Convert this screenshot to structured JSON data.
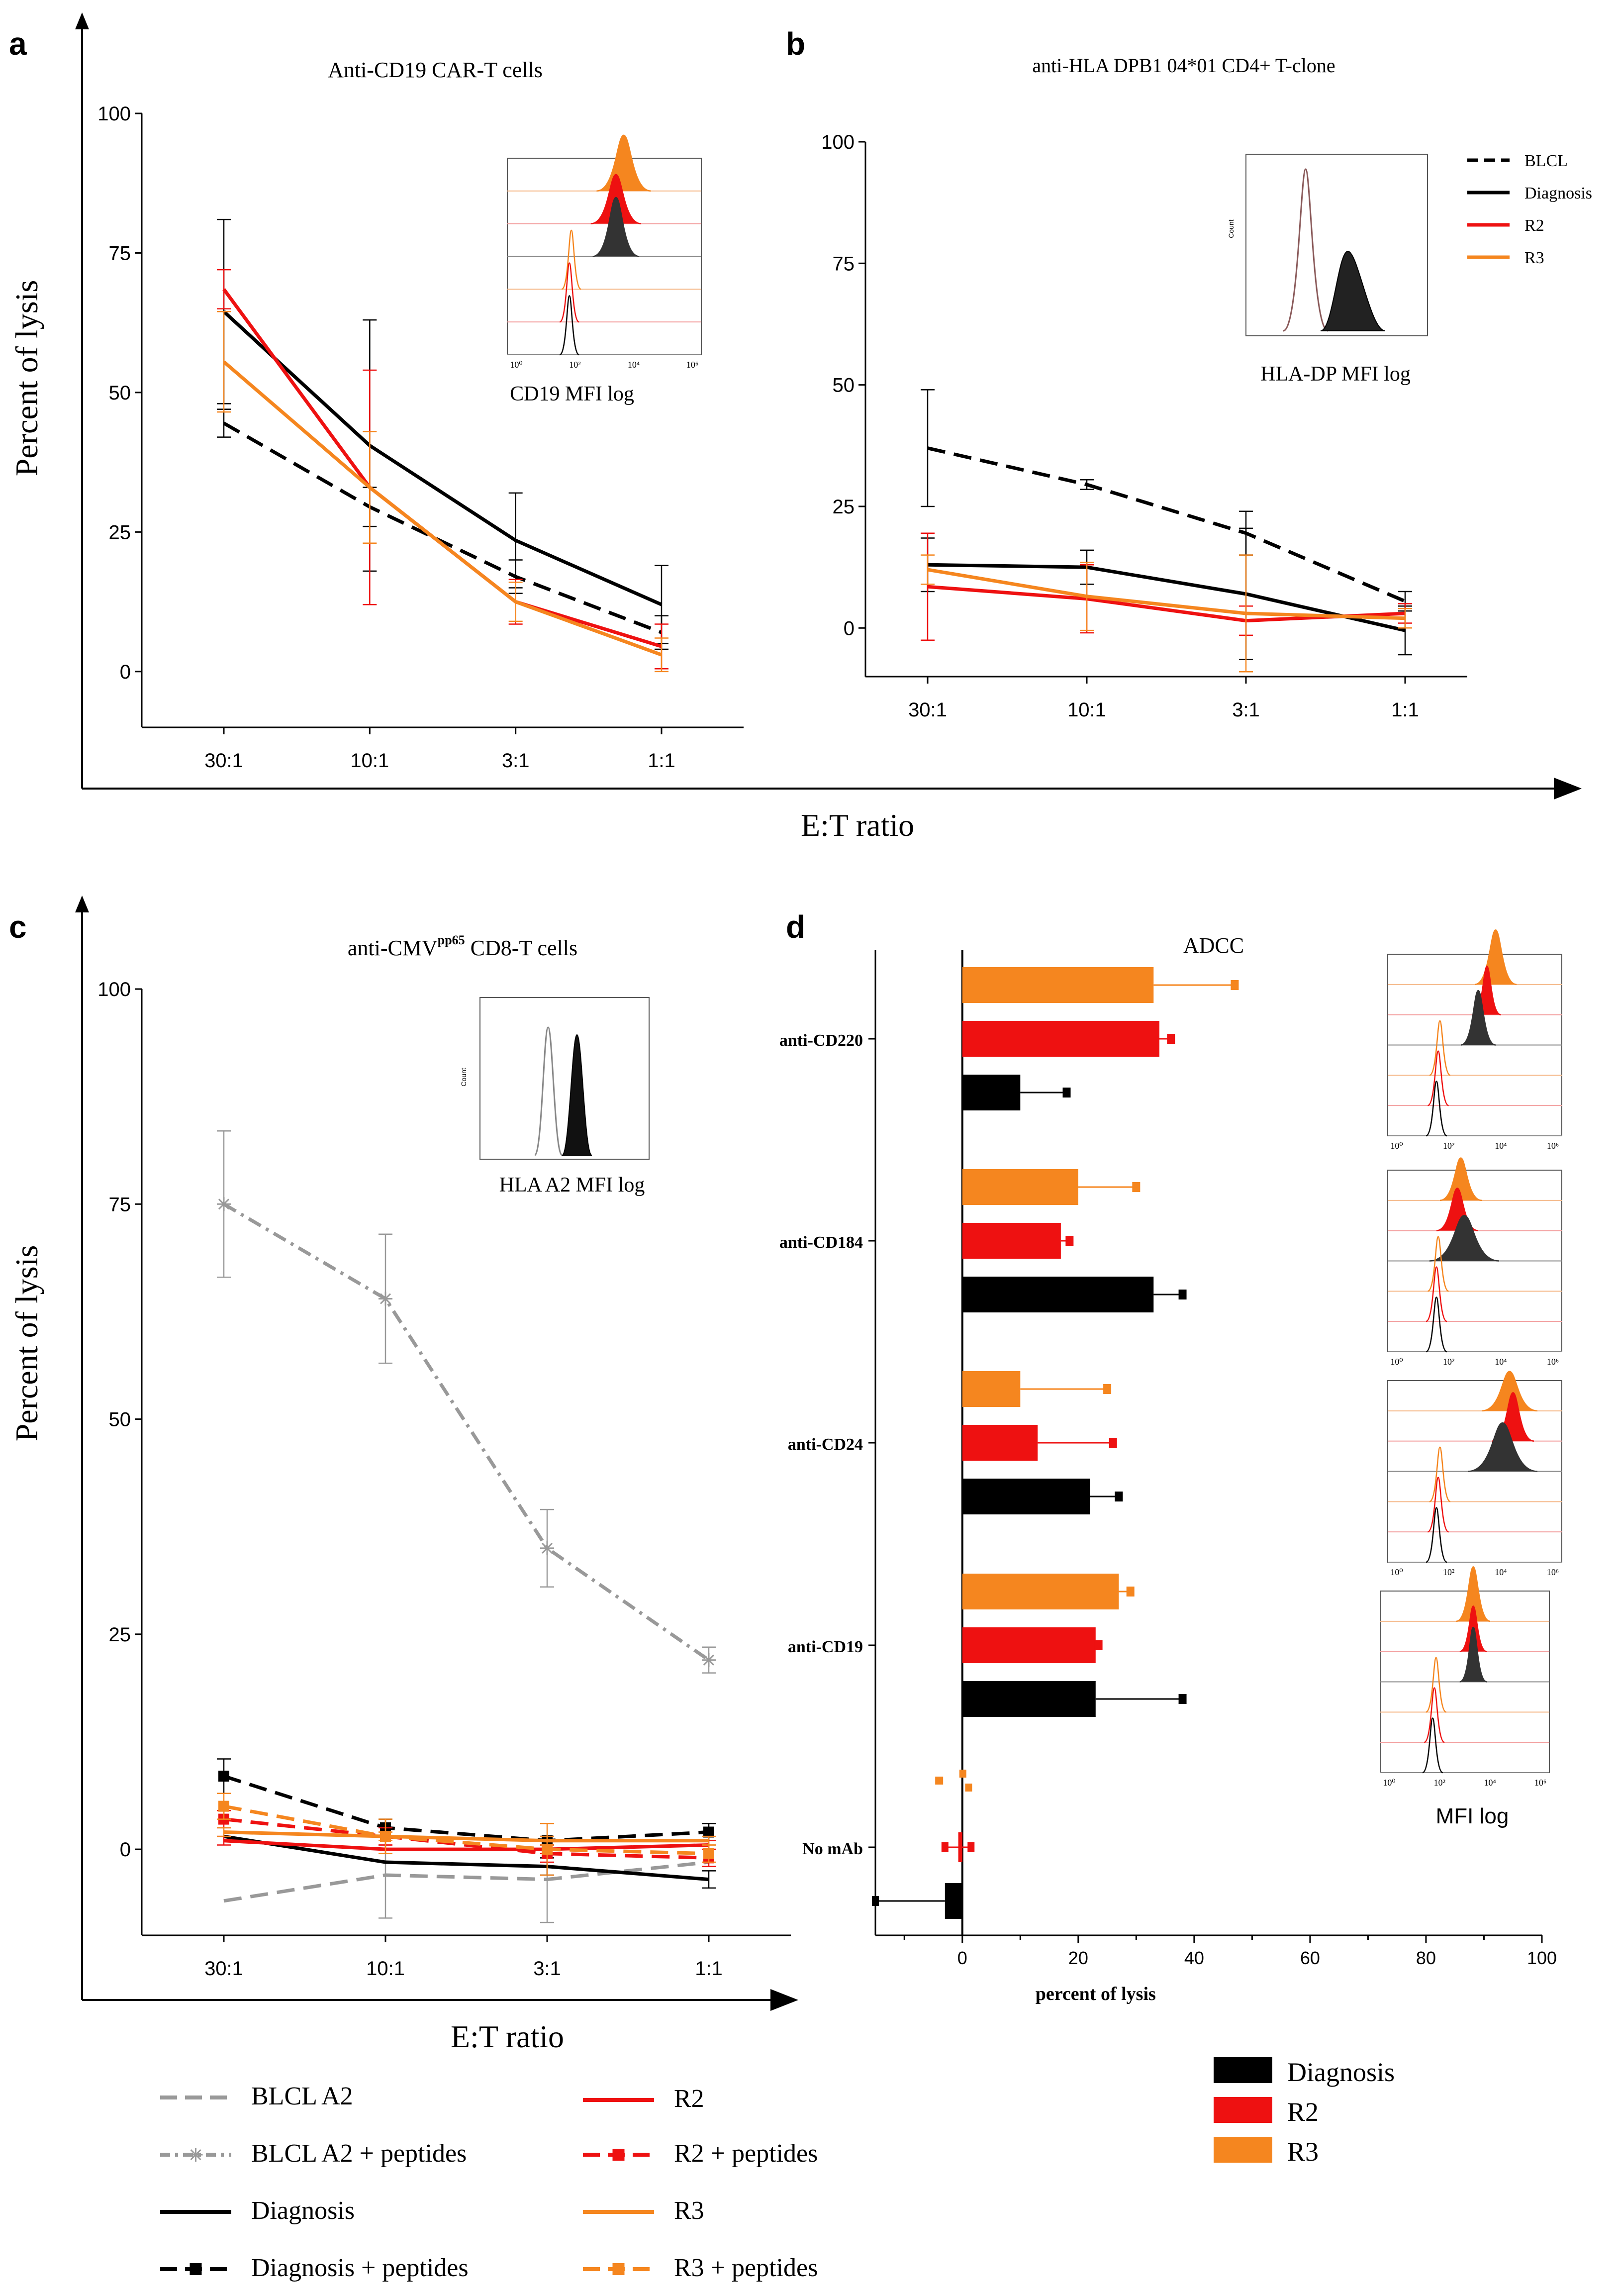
{
  "colors": {
    "black": "#000000",
    "red": "#ee1111",
    "orange": "#f5861f",
    "gray": "#999999",
    "dark_fill": "#333333"
  },
  "shared": {
    "et_axis_label": "E:T ratio",
    "y_axis_label": "Percent of lysis"
  },
  "chart_data": [
    {
      "id": "a",
      "panel_letter": "a",
      "type": "line",
      "title": "Anti-CD19 CAR-T cells",
      "xlabel": "",
      "ylabel": "Percent of lysis",
      "categories": [
        "30:1",
        "10:1",
        "3:1",
        "1:1"
      ],
      "ylim": [
        -10,
        100
      ],
      "yticks": [
        0,
        25,
        50,
        75,
        100
      ],
      "inset_label": "CD19 MFI log",
      "inset_ticks": [
        "10⁰",
        "10²",
        "10⁴",
        "10⁶"
      ],
      "series": [
        {
          "name": "BLCL",
          "color": "black",
          "dash": "dash",
          "values": [
            44.5,
            29.5,
            17,
            7
          ],
          "err": [
            2.5,
            3.5,
            3,
            3
          ]
        },
        {
          "name": "Diagnosis",
          "color": "black",
          "dash": "solid",
          "values": [
            64.5,
            40.5,
            23.5,
            12
          ],
          "err": [
            16.5,
            22.5,
            8.5,
            7
          ]
        },
        {
          "name": "R2",
          "color": "red",
          "dash": "solid",
          "values": [
            68.5,
            33,
            12.5,
            4.5
          ],
          "err": [
            3.5,
            21,
            4,
            4
          ]
        },
        {
          "name": "R3",
          "color": "orange",
          "dash": "solid",
          "values": [
            55.5,
            33,
            12.5,
            3
          ],
          "err": [
            9,
            10,
            3.5,
            3
          ]
        }
      ]
    },
    {
      "id": "b",
      "panel_letter": "b",
      "type": "line",
      "title": "anti-HLA DPB1 04*01 CD4+ T-clone",
      "xlabel": "",
      "ylabel": "",
      "categories": [
        "30:1",
        "10:1",
        "3:1",
        "1:1"
      ],
      "ylim": [
        -10,
        100
      ],
      "yticks": [
        0,
        25,
        50,
        75,
        100
      ],
      "inset_label": "HLA-DP MFI log",
      "inset_ylabel": "Count",
      "legend": [
        "BLCL",
        "Diagnosis",
        "R2",
        "R3"
      ],
      "series": [
        {
          "name": "BLCL",
          "color": "black",
          "dash": "dash",
          "values": [
            37,
            29.5,
            19.5,
            5.5
          ],
          "err": [
            12,
            1,
            4.5,
            2
          ]
        },
        {
          "name": "Diagnosis",
          "color": "black",
          "dash": "solid",
          "values": [
            13,
            12.5,
            7,
            -0.5
          ],
          "err": [
            5.5,
            3.5,
            13.5,
            5
          ]
        },
        {
          "name": "R2",
          "color": "red",
          "dash": "solid",
          "values": [
            8.5,
            6,
            1.5,
            3
          ],
          "err": [
            11,
            7,
            3,
            2
          ]
        },
        {
          "name": "R3",
          "color": "orange",
          "dash": "solid",
          "values": [
            12,
            6.5,
            3,
            2
          ],
          "err": [
            3,
            7,
            12,
            2
          ]
        }
      ]
    },
    {
      "id": "c",
      "panel_letter": "c",
      "type": "line",
      "title_main": "anti-CMV",
      "title_sup": "pp65",
      "title_rest": " CD8-T cells",
      "xlabel": "",
      "ylabel": "Percent of lysis",
      "categories": [
        "30:1",
        "10:1",
        "3:1",
        "1:1"
      ],
      "ylim": [
        -10,
        100
      ],
      "yticks": [
        0,
        25,
        50,
        75,
        100
      ],
      "inset_label": "HLA A2 MFI log",
      "inset_ylabel": "Count",
      "series": [
        {
          "name": "BLCL A2",
          "color": "gray",
          "dash": "dash",
          "marker": "",
          "values": [
            -6,
            -3,
            -3.5,
            -1.5
          ],
          "err": [
            0,
            5,
            5,
            0
          ]
        },
        {
          "name": "BLCL A2 + peptides",
          "color": "gray",
          "dash": "dashdot",
          "marker": "star",
          "values": [
            75,
            64,
            35,
            22
          ],
          "err": [
            8.5,
            7.5,
            4.5,
            1.5
          ]
        },
        {
          "name": "Diagnosis",
          "color": "black",
          "dash": "solid",
          "marker": "",
          "values": [
            1.5,
            -1.5,
            -2,
            -3.5
          ],
          "err": [
            0,
            0,
            1,
            1
          ]
        },
        {
          "name": "Diagnosis + peptides",
          "color": "black",
          "dash": "dash",
          "marker": "square",
          "values": [
            8.5,
            2.5,
            1,
            2
          ],
          "err": [
            2,
            1,
            0.5,
            1
          ]
        },
        {
          "name": "R2",
          "color": "red",
          "dash": "solid",
          "marker": "",
          "values": [
            1,
            0,
            0,
            0.5
          ],
          "err": [
            0.5,
            0.5,
            0.5,
            0.5
          ]
        },
        {
          "name": "R2 + peptides",
          "color": "red",
          "dash": "dash",
          "marker": "square",
          "values": [
            3.5,
            1.5,
            -0.5,
            -1
          ],
          "err": [
            1,
            1,
            1,
            1
          ]
        },
        {
          "name": "R3",
          "color": "orange",
          "dash": "solid",
          "marker": "",
          "values": [
            2,
            1.5,
            1,
            1
          ],
          "err": [
            0.5,
            0.5,
            0.5,
            0.5
          ]
        },
        {
          "name": "R3 + peptides",
          "color": "orange",
          "dash": "dash",
          "marker": "square",
          "values": [
            5,
            1.5,
            0,
            -0.5
          ],
          "err": [
            1.5,
            2,
            3,
            1
          ]
        }
      ]
    },
    {
      "id": "d",
      "panel_letter": "d",
      "type": "bar",
      "orientation": "horizontal",
      "title": "ADCC",
      "xlabel": "percent of lysis",
      "xlim": [
        -15,
        100
      ],
      "xticks": [
        0,
        20,
        40,
        60,
        80,
        100
      ],
      "inset_label": "MFI log",
      "categories": [
        "anti-CD220",
        "anti-CD184",
        "anti-CD24",
        "anti-CD19",
        "No mAb"
      ],
      "series": [
        {
          "name": "R3",
          "color": "orange",
          "values": [
            33,
            20,
            10,
            27,
            0
          ],
          "err": [
            14,
            10,
            15,
            2,
            0.5
          ]
        },
        {
          "name": "R2",
          "color": "red",
          "values": [
            34,
            17,
            13,
            23,
            0
          ],
          "err": [
            2,
            1.5,
            13,
            0.5,
            1
          ]
        },
        {
          "name": "Diagnosis",
          "color": "black",
          "values": [
            10,
            33,
            22,
            23,
            -3
          ],
          "err": [
            8,
            5,
            5,
            15,
            15
          ]
        }
      ],
      "legend": [
        "Diagnosis",
        "R2",
        "R3"
      ]
    }
  ]
}
